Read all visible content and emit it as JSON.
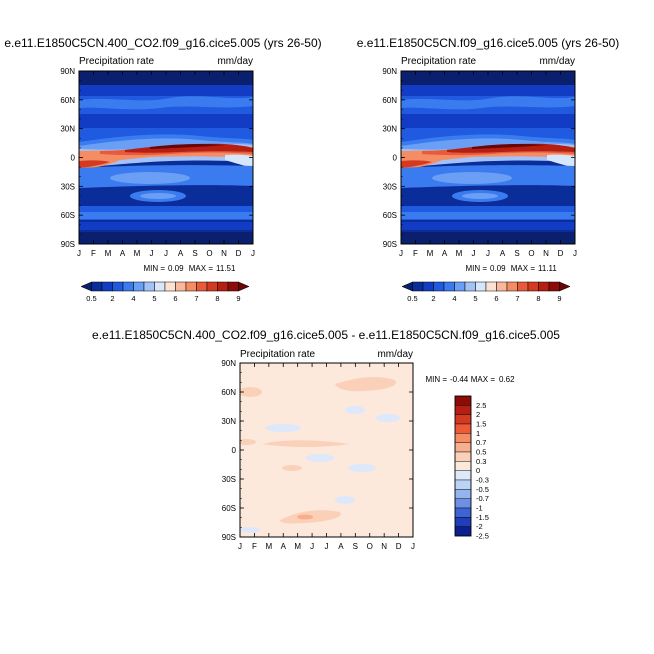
{
  "chart_data": [
    {
      "type": "heatmap",
      "title": "e.e11.E1850C5CN.400_CO2.f09_g16.cice5.005 (yrs 26-50)",
      "left_label": "Precipitation rate",
      "units": "mm/day",
      "x_ticks": [
        "J",
        "F",
        "M",
        "A",
        "M",
        "J",
        "J",
        "A",
        "S",
        "O",
        "N",
        "D",
        "J"
      ],
      "y_ticks": [
        "90N",
        "60N",
        "30N",
        "0",
        "30S",
        "60S",
        "90S"
      ],
      "stats": {
        "min_label": "MIN =",
        "min": "0.09",
        "max_label": "MAX =",
        "max": "11.51"
      },
      "colorbar_labels": [
        "0.5",
        "2",
        "4",
        "5",
        "6",
        "7",
        "8",
        "9"
      ],
      "levels": [
        0.5,
        1,
        2,
        3,
        4,
        4.5,
        5,
        5.5,
        6,
        6.5,
        7,
        7.5,
        8,
        8.5,
        9
      ]
    },
    {
      "type": "heatmap",
      "title": "e.e11.E1850C5CN.f09_g16.cice5.005 (yrs 26-50)",
      "left_label": "Precipitation rate",
      "units": "mm/day",
      "x_ticks": [
        "J",
        "F",
        "M",
        "A",
        "M",
        "J",
        "J",
        "A",
        "S",
        "O",
        "N",
        "D",
        "J"
      ],
      "y_ticks": [
        "90N",
        "60N",
        "30N",
        "0",
        "30S",
        "60S",
        "90S"
      ],
      "stats": {
        "min_label": "MIN =",
        "min": "0.09",
        "max_label": "MAX =",
        "max": "11.11"
      },
      "colorbar_labels": [
        "0.5",
        "2",
        "4",
        "5",
        "6",
        "7",
        "8",
        "9"
      ],
      "levels": [
        0.5,
        1,
        2,
        3,
        4,
        4.5,
        5,
        5.5,
        6,
        6.5,
        7,
        7.5,
        8,
        8.5,
        9
      ]
    },
    {
      "type": "heatmap",
      "title": "e.e11.E1850C5CN.400_CO2.f09_g16.cice5.005 - e.e11.E1850C5CN.f09_g16.cice5.005",
      "left_label": "Precipitation rate",
      "units": "mm/day",
      "x_ticks": [
        "J",
        "F",
        "M",
        "A",
        "M",
        "J",
        "J",
        "A",
        "S",
        "O",
        "N",
        "D",
        "J"
      ],
      "y_ticks": [
        "90N",
        "60N",
        "30N",
        "0",
        "30S",
        "60S",
        "90S"
      ],
      "stats": {
        "min_label": "MIN =",
        "min": "-0.44",
        "max_label": "MAX =",
        "max": "0.62"
      },
      "colorbar_labels": [
        "2.5",
        "2",
        "1.5",
        "1",
        "0.7",
        "0.5",
        "0.3",
        "0",
        "-0.3",
        "-0.5",
        "-0.7",
        "-1",
        "-1.5",
        "-2",
        "-2.5"
      ]
    }
  ],
  "colors": {
    "abs_colorbar": [
      "#0a1f6e",
      "#0b2d9a",
      "#123cc4",
      "#1f5ae0",
      "#3a7bf0",
      "#6b9ef5",
      "#a3c3f8",
      "#d6e6fb",
      "#fde2d2",
      "#f9b89a",
      "#f48c64",
      "#e85a3a",
      "#d43a22",
      "#b51e12",
      "#8e0c08",
      "#6a0505"
    ],
    "diff_colorbar": [
      "#8e0c08",
      "#b51e12",
      "#d43a22",
      "#ec5a38",
      "#f48c64",
      "#f7ad8e",
      "#fbd0b8",
      "#fde8dc",
      "#dde9fa",
      "#bcd3f6",
      "#92b5ef",
      "#6b90e4",
      "#3f63d2",
      "#1f3fb8",
      "#0b1f8e"
    ]
  }
}
